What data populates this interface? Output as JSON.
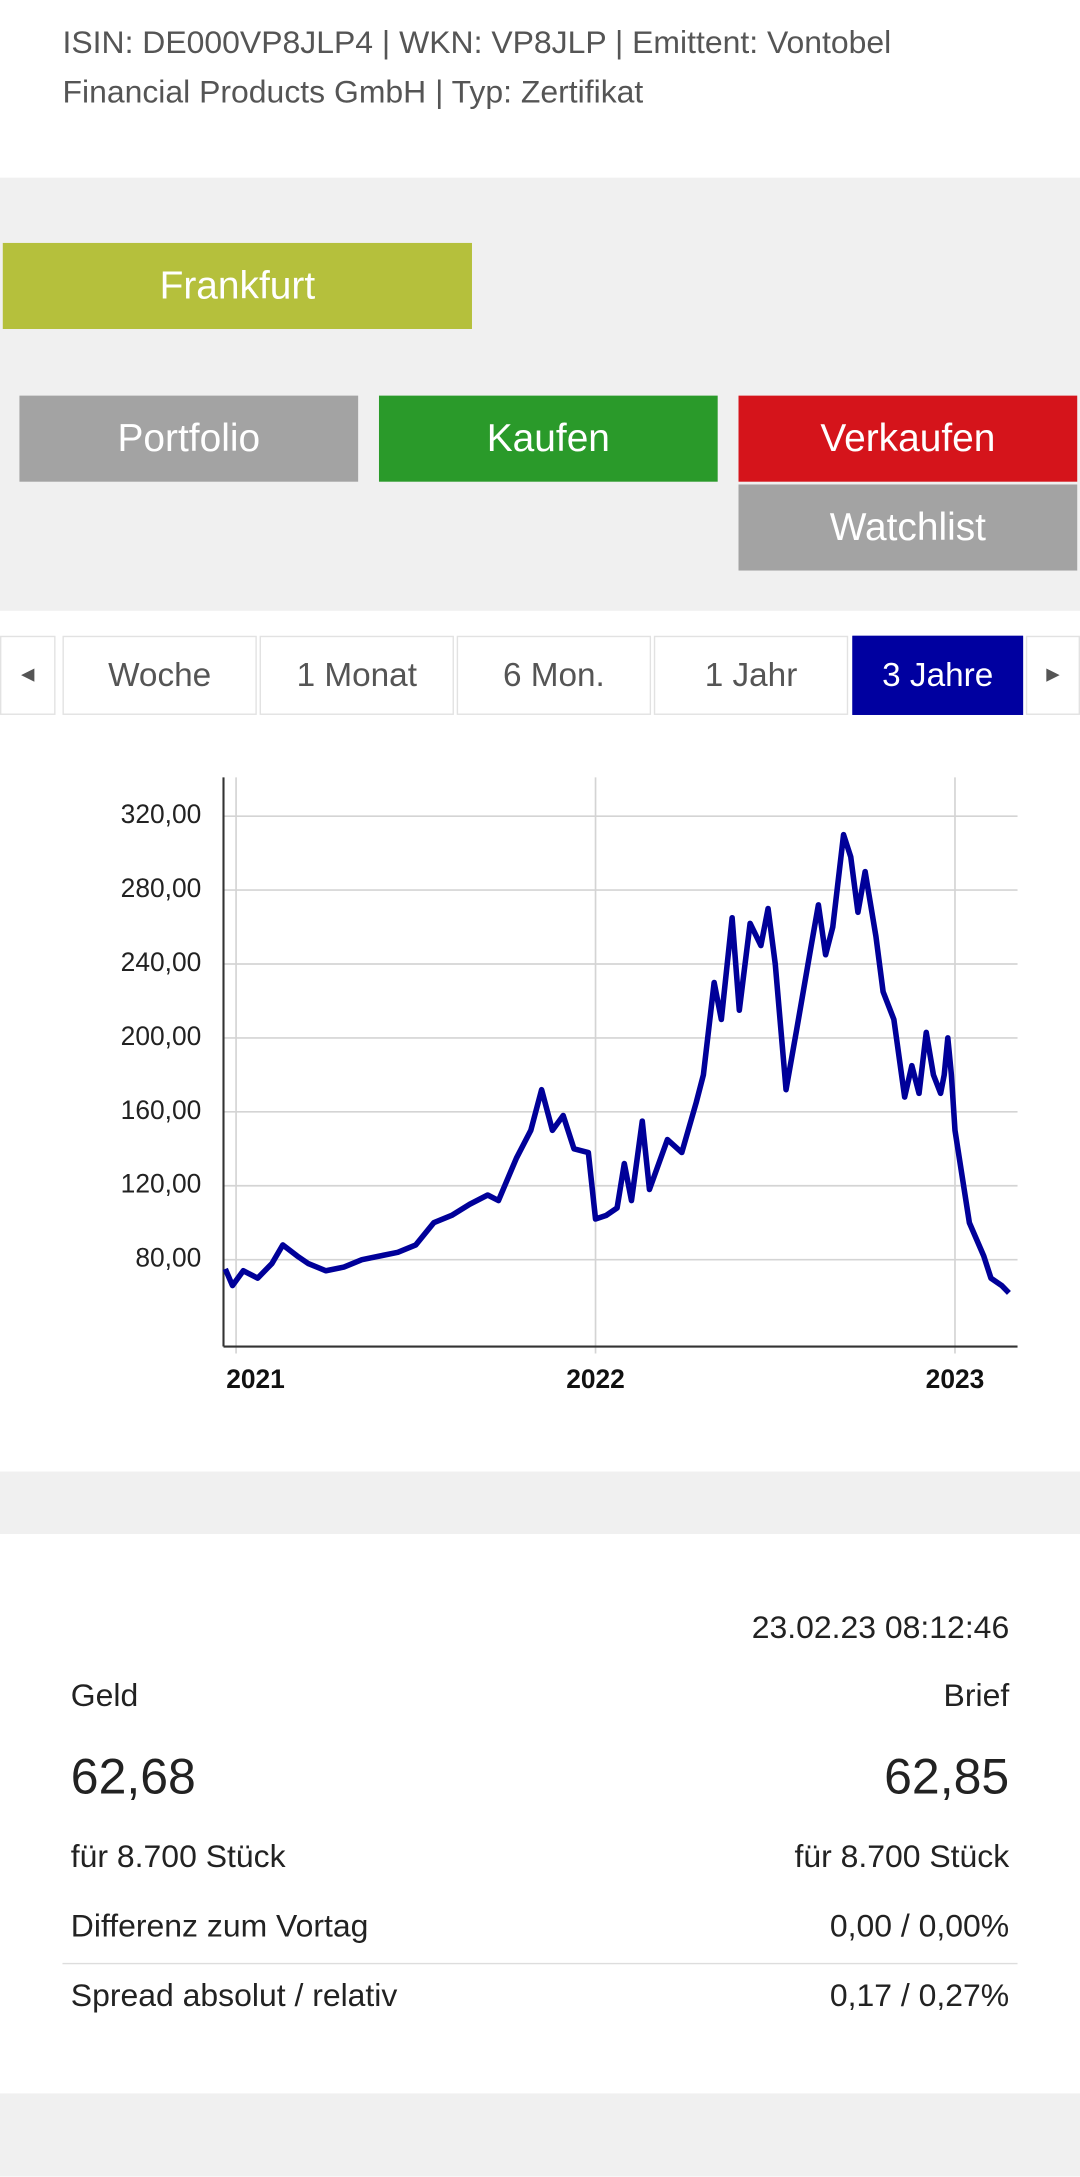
{
  "header": {
    "text": "ISIN: DE000VP8JLP4 | WKN: VP8JLP | Emittent: Vontobel Financial Products GmbH | Typ: Zertifikat"
  },
  "exchange": "Frankfurt",
  "buttons": [
    "Portfolio",
    "Kaufen",
    "Verkaufen",
    "Watchlist"
  ],
  "tabs": {
    "prev": "◄",
    "items": [
      "Woche",
      "1 Monat",
      "6 Mon.",
      "1 Jahr",
      "3 Jahre"
    ],
    "active": 4,
    "next": "►"
  },
  "chart_data": {
    "type": "line",
    "x": [
      2020.97,
      2020.99,
      2021.02,
      2021.06,
      2021.1,
      2021.13,
      2021.17,
      2021.2,
      2021.25,
      2021.3,
      2021.35,
      2021.4,
      2021.45,
      2021.5,
      2021.55,
      2021.6,
      2021.65,
      2021.7,
      2021.73,
      2021.78,
      2021.82,
      2021.85,
      2021.88,
      2021.91,
      2021.94,
      2021.98,
      2022.0,
      2022.03,
      2022.06,
      2022.08,
      2022.1,
      2022.13,
      2022.15,
      2022.2,
      2022.24,
      2022.28,
      2022.3,
      2022.33,
      2022.35,
      2022.38,
      2022.4,
      2022.43,
      2022.46,
      2022.48,
      2022.5,
      2022.53,
      2022.56,
      2022.6,
      2022.62,
      2022.64,
      2022.66,
      2022.69,
      2022.71,
      2022.73,
      2022.75,
      2022.78,
      2022.8,
      2022.83,
      2022.86,
      2022.88,
      2022.9,
      2022.92,
      2022.94,
      2022.96,
      2022.97,
      2022.98,
      2022.99,
      2023.0,
      2023.04,
      2023.08,
      2023.1,
      2023.13,
      2023.15
    ],
    "series": [
      {
        "color": "#000099",
        "values": [
          75,
          66,
          74,
          70,
          78,
          88,
          82,
          78,
          74,
          76,
          80,
          82,
          84,
          88,
          100,
          104,
          110,
          115,
          112,
          135,
          150,
          172,
          150,
          158,
          140,
          138,
          102,
          104,
          108,
          132,
          112,
          155,
          118,
          145,
          138,
          165,
          180,
          230,
          210,
          265,
          215,
          262,
          250,
          270,
          240,
          172,
          205,
          250,
          272,
          245,
          260,
          310,
          298,
          268,
          290,
          255,
          225,
          210,
          168,
          185,
          170,
          203,
          180,
          170,
          180,
          200,
          180,
          150,
          100,
          82,
          70,
          66,
          62
        ]
      }
    ],
    "xlim": [
      2020.965,
      2023.174
    ],
    "xticks": [
      2021,
      2022,
      2023
    ],
    "ylim": [
      33,
      341
    ],
    "yticks": [
      {
        "value": 80,
        "label": "80,00"
      },
      {
        "value": 120,
        "label": "120,00"
      },
      {
        "value": 160,
        "label": "160,00"
      },
      {
        "value": 200,
        "label": "200,00"
      },
      {
        "value": 240,
        "label": "240,00"
      },
      {
        "value": 280,
        "label": "280,00"
      },
      {
        "value": 320,
        "label": "320,00"
      }
    ],
    "grid": true
  },
  "quote": {
    "timestamp": "23.02.23 08:12:46",
    "bid_label": "Geld",
    "ask_label": "Brief",
    "bid": "62,68",
    "ask": "62,85",
    "bid_size": "für 8.700 Stück",
    "ask_size": "für 8.700 Stück",
    "rows": [
      [
        "Differenz zum Vortag",
        "0,00 / 0,00%"
      ],
      [
        "Spread absolut / relativ",
        "0,17 / 0,27%"
      ]
    ]
  }
}
